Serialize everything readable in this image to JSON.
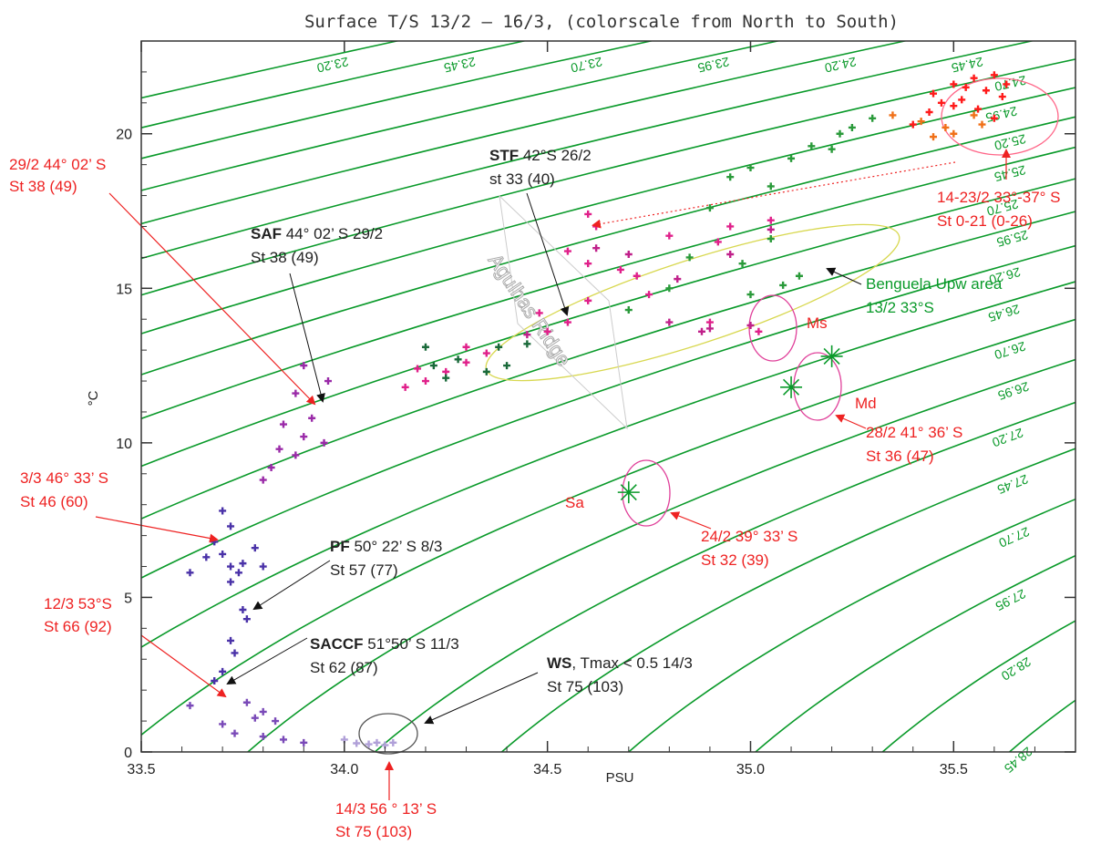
{
  "chart_data": {
    "type": "scatter",
    "title": "Surface T/S 13/2 – 16/3, (colorscale from North to South)",
    "xlabel": "PSU",
    "ylabel": "°C",
    "xlim": [
      33.5,
      35.8
    ],
    "ylim": [
      0,
      23
    ],
    "x_ticks": [
      "33.5",
      "34.0",
      "34.5",
      "35.0",
      "35.5"
    ],
    "y_ticks": [
      "0",
      "5",
      "10",
      "15",
      "20"
    ],
    "grid": false,
    "isopycnals": [
      "23.20",
      "23.45",
      "23.70",
      "23.95",
      "24.20",
      "24.45",
      "24.70",
      "24.95",
      "25.20",
      "25.45",
      "25.70",
      "25.95",
      "26.20",
      "26.45",
      "26.70",
      "26.95",
      "27.20",
      "27.45",
      "27.70",
      "27.95",
      "28.20",
      "28.45"
    ],
    "series": [
      {
        "color": "#ff1a1a",
        "points": [
          [
            35.45,
            21.3
          ],
          [
            35.5,
            21.6
          ],
          [
            35.52,
            21.1
          ],
          [
            35.55,
            21.8
          ],
          [
            35.58,
            21.4
          ],
          [
            35.6,
            21.9
          ],
          [
            35.62,
            21.2
          ],
          [
            35.5,
            20.9
          ],
          [
            35.47,
            21.0
          ],
          [
            35.56,
            20.8
          ],
          [
            35.6,
            20.5
          ],
          [
            35.53,
            21.5
          ],
          [
            35.63,
            21.6
          ],
          [
            35.4,
            20.3
          ],
          [
            35.44,
            20.7
          ]
        ]
      },
      {
        "color": "#f07018",
        "points": [
          [
            35.35,
            20.6
          ],
          [
            35.42,
            20.4
          ],
          [
            35.48,
            20.2
          ],
          [
            35.55,
            20.6
          ],
          [
            35.5,
            20.0
          ],
          [
            35.57,
            20.3
          ],
          [
            35.45,
            19.9
          ]
        ]
      },
      {
        "color": "#2a9a3a",
        "points": [
          [
            35.3,
            20.5
          ],
          [
            35.22,
            20.0
          ],
          [
            35.15,
            19.6
          ],
          [
            35.1,
            19.2
          ],
          [
            35.0,
            18.9
          ],
          [
            35.05,
            18.3
          ],
          [
            34.95,
            18.6
          ],
          [
            35.2,
            19.5
          ],
          [
            35.25,
            20.2
          ],
          [
            34.9,
            17.6
          ],
          [
            34.85,
            16.0
          ],
          [
            35.05,
            16.6
          ],
          [
            35.12,
            15.4
          ],
          [
            34.98,
            15.8
          ],
          [
            35.0,
            14.8
          ],
          [
            34.8,
            15.0
          ],
          [
            34.7,
            14.3
          ],
          [
            35.08,
            15.1
          ]
        ]
      },
      {
        "color": "#e0208a",
        "points": [
          [
            34.6,
            17.4
          ],
          [
            34.62,
            17.0
          ],
          [
            34.55,
            16.2
          ],
          [
            34.6,
            15.8
          ],
          [
            34.68,
            15.6
          ],
          [
            34.72,
            15.4
          ],
          [
            34.8,
            16.7
          ],
          [
            34.92,
            16.5
          ],
          [
            34.95,
            17.0
          ],
          [
            35.05,
            17.2
          ],
          [
            34.75,
            14.8
          ],
          [
            34.6,
            14.6
          ],
          [
            34.5,
            13.6
          ],
          [
            34.48,
            14.2
          ],
          [
            34.35,
            12.9
          ],
          [
            34.3,
            12.6
          ],
          [
            34.25,
            12.3
          ],
          [
            34.2,
            12.0
          ],
          [
            34.15,
            11.8
          ],
          [
            34.18,
            12.4
          ],
          [
            34.9,
            13.9
          ],
          [
            35.02,
            13.6
          ],
          [
            34.3,
            13.1
          ],
          [
            34.55,
            13.9
          ]
        ]
      },
      {
        "color": "#c0208a",
        "points": [
          [
            34.62,
            16.3
          ],
          [
            34.7,
            16.1
          ],
          [
            34.82,
            15.3
          ],
          [
            34.95,
            16.1
          ],
          [
            35.05,
            16.9
          ],
          [
            34.9,
            13.7
          ],
          [
            35.0,
            13.8
          ],
          [
            34.88,
            13.6
          ],
          [
            34.8,
            13.9
          ],
          [
            34.45,
            13.5
          ]
        ]
      },
      {
        "color": "#1a6a3a",
        "points": [
          [
            34.2,
            13.1
          ],
          [
            34.28,
            12.7
          ],
          [
            34.35,
            12.3
          ],
          [
            34.4,
            12.5
          ],
          [
            34.45,
            13.2
          ],
          [
            34.38,
            13.1
          ],
          [
            34.25,
            12.1
          ],
          [
            34.22,
            12.5
          ]
        ]
      },
      {
        "color": "#9a2aa8",
        "points": [
          [
            33.9,
            12.5
          ],
          [
            33.88,
            11.6
          ],
          [
            33.85,
            10.6
          ],
          [
            33.9,
            10.2
          ],
          [
            33.88,
            9.6
          ],
          [
            33.82,
            9.2
          ],
          [
            33.8,
            8.8
          ],
          [
            33.84,
            9.8
          ],
          [
            33.95,
            10.0
          ],
          [
            33.92,
            10.8
          ],
          [
            33.96,
            12.0
          ]
        ]
      },
      {
        "color": "#4a32a8",
        "points": [
          [
            33.7,
            7.8
          ],
          [
            33.72,
            7.3
          ],
          [
            33.68,
            6.8
          ],
          [
            33.7,
            6.4
          ],
          [
            33.72,
            6.0
          ],
          [
            33.75,
            6.1
          ],
          [
            33.74,
            5.8
          ],
          [
            33.78,
            6.6
          ],
          [
            33.72,
            5.5
          ],
          [
            33.66,
            6.3
          ],
          [
            33.62,
            5.8
          ],
          [
            33.75,
            4.6
          ],
          [
            33.76,
            4.3
          ],
          [
            33.72,
            3.6
          ],
          [
            33.73,
            3.2
          ],
          [
            33.7,
            2.6
          ],
          [
            33.68,
            2.3
          ],
          [
            33.8,
            6.0
          ]
        ]
      },
      {
        "color": "#7a4ab8",
        "points": [
          [
            33.76,
            1.6
          ],
          [
            33.8,
            1.3
          ],
          [
            33.78,
            1.1
          ],
          [
            33.83,
            1.0
          ],
          [
            33.7,
            0.9
          ],
          [
            33.73,
            0.6
          ],
          [
            33.8,
            0.5
          ],
          [
            33.85,
            0.4
          ],
          [
            33.9,
            0.3
          ],
          [
            33.62,
            1.5
          ]
        ]
      },
      {
        "color": "#b0a0d8",
        "points": [
          [
            34.06,
            0.25
          ],
          [
            34.08,
            0.3
          ],
          [
            34.1,
            0.22
          ],
          [
            34.12,
            0.3
          ],
          [
            34.0,
            0.4
          ],
          [
            34.03,
            0.28
          ]
        ]
      }
    ],
    "stars": [
      [
        34.7,
        8.4
      ],
      [
        35.1,
        11.8
      ],
      [
        35.2,
        12.8
      ]
    ],
    "annotations": {
      "red": [
        {
          "lines": [
            "29/2 44° 02’ S",
            "St 38 (49)"
          ]
        },
        {
          "lines": [
            "3/3 46° 33’ S",
            "St 46 (60)"
          ]
        },
        {
          "lines": [
            "12/3 53°S",
            "St 66 (92)"
          ]
        },
        {
          "lines": [
            "14/3 56 ° 13’ S",
            "St 75 (103)"
          ]
        },
        {
          "lines": [
            "24/2 39° 33’ S",
            "St 32 (39)"
          ]
        },
        {
          "lines": [
            "28/2 41° 36’ S",
            "St 36 (47)"
          ]
        },
        {
          "lines": [
            "14-23/2 33°-37° S",
            "St 0-21 (0-26)"
          ]
        }
      ],
      "black": [
        {
          "bold": "STF",
          "rest": " 42°S 26/2",
          "line2": "st 33 (40)"
        },
        {
          "bold": "SAF",
          "rest": " 44° 02’ S 29/2",
          "line2": "St 38 (49)"
        },
        {
          "bold": "PF",
          "rest": " 50° 22’ S 8/3",
          "line2": "St 57 (77)"
        },
        {
          "bold": "SACCF",
          "rest": " 51°50’ S 11/3",
          "line2": "St 62 (87)"
        },
        {
          "bold": "WS",
          "rest": ", Tmax < 0.5 14/3",
          "line2": "St 75 (103)"
        }
      ],
      "green": [
        "Benguela Upw area",
        "13/2  33°S"
      ],
      "water_masses": [
        "Ms",
        "Md",
        "Sa"
      ],
      "ridge": "Agulhas Ridge"
    },
    "colors": {
      "isopycnal": "#0a9a2a",
      "red_annotation": "#ee2222",
      "black_annotation": "#222222"
    }
  }
}
